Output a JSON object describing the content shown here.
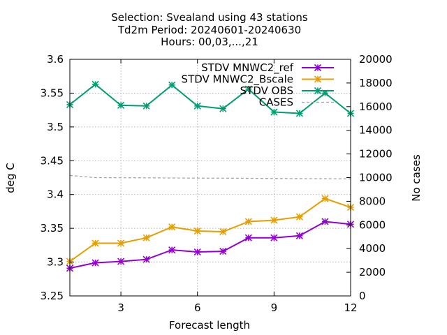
{
  "chart_data": {
    "type": "line",
    "title_lines": [
      "Selection: Svealand using    43 stations",
      "Td2m   Period: 20240601-20240630",
      "Hours: 00,03,...,21"
    ],
    "xlabel": "Forecast length",
    "ylabel": "deg C",
    "y2label": "No cases",
    "xlim": [
      1,
      12
    ],
    "ylim": [
      3.25,
      3.6
    ],
    "y2lim": [
      0,
      20000
    ],
    "xticks": [
      "3",
      "6",
      "9",
      "12"
    ],
    "yticks": [
      "3.25",
      "3.3",
      "3.35",
      "3.4",
      "3.45",
      "3.5",
      "3.55",
      "3.6"
    ],
    "y2ticks": [
      "0",
      "2000",
      "4000",
      "6000",
      "8000",
      "10000",
      "12000",
      "14000",
      "16000",
      "18000",
      "20000"
    ],
    "grid": true,
    "legend_position": "top-right",
    "x": [
      1,
      2,
      3,
      4,
      5,
      6,
      7,
      8,
      9,
      10,
      11,
      12
    ],
    "series": [
      {
        "name": "STDV MNWC2_ref",
        "color": "#9400d3",
        "axis": "y",
        "marker": true,
        "values": [
          3.291,
          3.299,
          3.301,
          3.304,
          3.318,
          3.315,
          3.316,
          3.336,
          3.336,
          3.339,
          3.36,
          3.356
        ]
      },
      {
        "name": "STDV MNWC2_Bscale",
        "color": "#e69f00",
        "axis": "y",
        "marker": true,
        "values": [
          3.301,
          3.328,
          3.328,
          3.336,
          3.352,
          3.346,
          3.345,
          3.36,
          3.362,
          3.367,
          3.394,
          3.381
        ]
      },
      {
        "name": "STDV OBS",
        "color": "#009e73",
        "axis": "y",
        "marker": true,
        "values": [
          3.533,
          3.563,
          3.532,
          3.531,
          3.562,
          3.531,
          3.527,
          3.556,
          3.522,
          3.52,
          3.55,
          3.52
        ]
      },
      {
        "name": "CASES",
        "color": "#a0a0a0",
        "axis": "y2",
        "marker": false,
        "dashed": true,
        "values": [
          10180,
          10000,
          9990,
          9980,
          9970,
          9960,
          9950,
          9940,
          9930,
          9920,
          9910,
          9900
        ]
      }
    ]
  }
}
